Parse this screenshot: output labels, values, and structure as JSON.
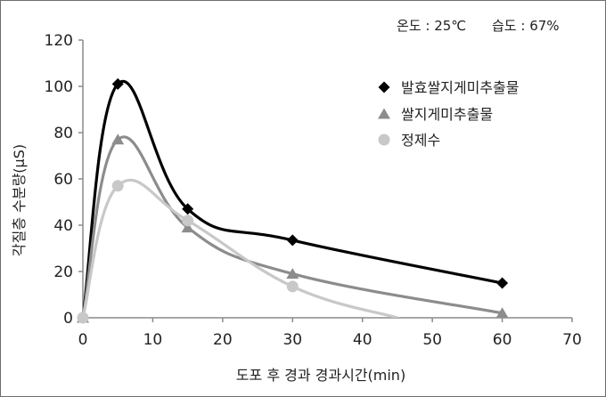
{
  "conditions": {
    "temperature": "온도 : 25℃",
    "humidity": "습도 : 67%"
  },
  "chart_data": {
    "type": "line",
    "xlabel": "도포 후 경과 경과시간(min)",
    "ylabel": "각질층 수분량(μS)",
    "xlim": [
      0,
      70
    ],
    "ylim": [
      0,
      120
    ],
    "xticks": [
      0,
      10,
      20,
      30,
      40,
      50,
      60,
      70
    ],
    "yticks": [
      0,
      20,
      40,
      60,
      80,
      100,
      120
    ],
    "grid": false,
    "legend_position": "top-right",
    "series": [
      {
        "name": "발효쌀지게미추출물",
        "marker": "diamond",
        "color": "#000000",
        "x": [
          0,
          5,
          15,
          30,
          60
        ],
        "y": [
          0,
          101,
          47,
          33.5,
          15
        ]
      },
      {
        "name": "쌀지게미추출물",
        "marker": "triangle",
        "color": "#8c8c8c",
        "x": [
          0,
          5,
          15,
          30,
          60
        ],
        "y": [
          0,
          77,
          39,
          19,
          2
        ]
      },
      {
        "name": "정제수",
        "marker": "circle",
        "color": "#c8c8c8",
        "x": [
          0,
          5,
          15,
          30
        ],
        "y": [
          0,
          57,
          42,
          13.5
        ]
      }
    ]
  }
}
